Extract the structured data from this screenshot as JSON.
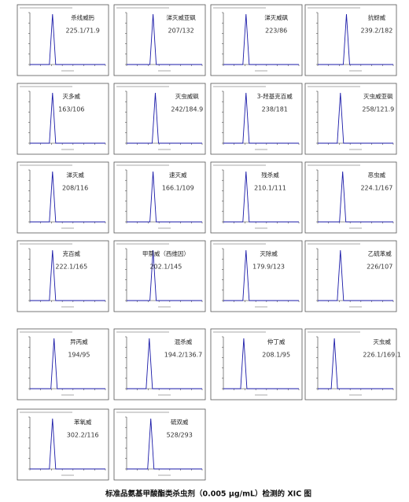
{
  "figure": {
    "panels": [
      {
        "name": "杀线威肟",
        "transition": "225.1/71.9"
      },
      {
        "name": "涕灭威亚砜",
        "transition": "207/132"
      },
      {
        "name": "涕灭威砜",
        "transition": "223/86"
      },
      {
        "name": "抗蚜威",
        "transition": "239.2/182"
      },
      {
        "name": "灭多威",
        "transition": "163/106"
      },
      {
        "name": "灭虫威砜",
        "transition": "242/184.9"
      },
      {
        "name": "3-羟基克百威",
        "transition": "238/181"
      },
      {
        "name": "灭虫威亚砜",
        "transition": "258/121.9"
      },
      {
        "name": "涕灭威",
        "transition": "208/116"
      },
      {
        "name": "速灭威",
        "transition": "166.1/109"
      },
      {
        "name": "残杀威",
        "transition": "210.1/111"
      },
      {
        "name": "恶虫威",
        "transition": "224.1/167"
      },
      {
        "name": "克百威",
        "transition": "222.1/165"
      },
      {
        "name": "甲萘威（西维因）",
        "transition": "202.1/145"
      },
      {
        "name": "灭除威",
        "transition": "179.9/123"
      },
      {
        "name": "乙硫苯威",
        "transition": "226/107"
      },
      {
        "name": "异丙威",
        "transition": "194/95"
      },
      {
        "name": "混杀威",
        "transition": "194.2/136.7"
      },
      {
        "name": "仲丁威",
        "transition": "208.1/95"
      },
      {
        "name": "灭虫威",
        "transition": "226.1/169.1"
      },
      {
        "name": "苯氧威",
        "transition": "302.2/116"
      },
      {
        "name": "硫双威",
        "transition": "528/293"
      }
    ],
    "caption": "标准品氨基甲酸酯类杀虫剂（0.005 μg/mL）检测的 XIC 图"
  }
}
